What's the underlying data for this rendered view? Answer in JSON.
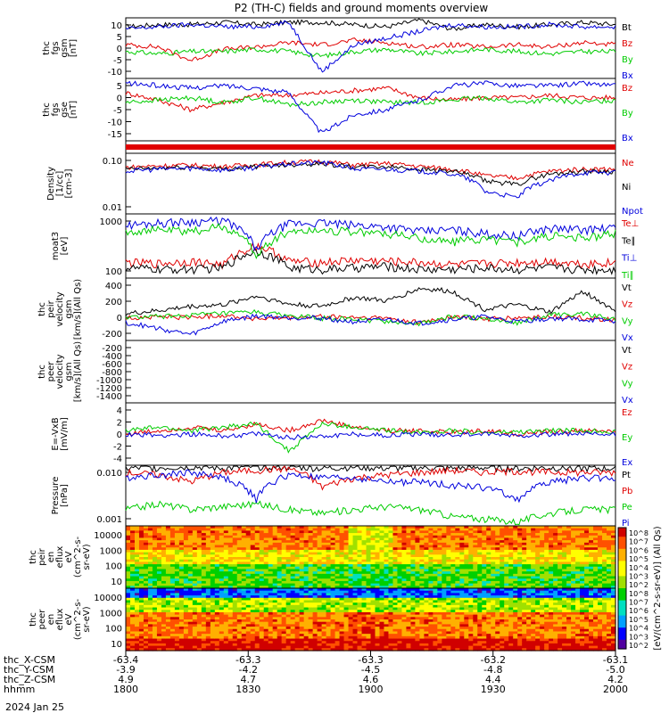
{
  "title": "P2 (TH-C) fields and ground moments overview",
  "date_label": "2024 Jan 25",
  "colors": {
    "black": "#000000",
    "red": "#e00000",
    "green": "#00cc00",
    "blue": "#0000dd"
  },
  "colorbar_label": "[eV/(cm^2-s-sr-eV)] (All Qs)",
  "colorbar_ticks": [
    "10^8",
    "10^7",
    "10^6",
    "10^5",
    "10^4",
    "10^3",
    "10^2",
    "10^8",
    "10^7",
    "10^6",
    "10^5",
    "10^4",
    "10^3",
    "10^2"
  ],
  "chart_data": {
    "type": "line",
    "x_axis": {
      "row_labels": [
        "thc_X-CSM",
        "thc_Y-CSM",
        "thc_Z-CSM",
        "hhmm"
      ],
      "columns": [
        [
          "-63.4",
          "-3.9",
          "4.9",
          "1800"
        ],
        [
          "-63.3",
          "-4.2",
          "4.7",
          "1830"
        ],
        [
          "-63.3",
          "-4.5",
          "4.6",
          "1900"
        ],
        [
          "-63.2",
          "-4.8",
          "4.4",
          "1930"
        ],
        [
          "-63.1",
          "-5.0",
          "4.2",
          "2000"
        ]
      ],
      "range": [
        "1800",
        "2000"
      ]
    },
    "panels": [
      {
        "id": "fgs_gsm",
        "ylabel": [
          "thc",
          "fgs",
          "gsm",
          "[nT]"
        ],
        "yticks": [
          "10",
          "5",
          "0",
          "-5",
          "-10"
        ],
        "ylim": [
          -13,
          14
        ],
        "series": [
          {
            "name": "Bt",
            "color": "#000000",
            "values": [
              10,
              11,
              11,
              12,
              11,
              12,
              12,
              11,
              10,
              13,
              9,
              11,
              10,
              11,
              12,
              11
            ]
          },
          {
            "name": "Bz",
            "color": "#e00000",
            "values": [
              2,
              1,
              -5,
              0,
              1,
              3,
              2,
              4,
              3,
              1,
              2,
              1,
              2,
              1,
              3,
              2
            ]
          },
          {
            "name": "By",
            "color": "#00cc00",
            "values": [
              -1,
              -2,
              -1,
              -1,
              0,
              -1,
              -3,
              -1,
              0,
              -2,
              -1,
              0,
              -1,
              -2,
              -1,
              -1
            ]
          },
          {
            "name": "Bx",
            "color": "#0000dd",
            "values": [
              9,
              10,
              11,
              10,
              10,
              12,
              -10,
              2,
              5,
              8,
              11,
              10,
              10,
              11,
              10,
              10
            ]
          }
        ]
      },
      {
        "id": "fgs_gse",
        "ylabel": [
          "thc",
          "fgs",
          "gse",
          "[nT]"
        ],
        "yticks": [
          "5",
          "0",
          "-5",
          "-10",
          "-15"
        ],
        "ylim": [
          -19,
          7
        ],
        "series": [
          {
            "name": "Bz",
            "color": "#e00000",
            "values": [
              1,
              -2,
              -6,
              -3,
              0,
              0,
              1,
              2,
              3,
              -1,
              -2,
              -1,
              -1,
              0,
              -1,
              -1
            ]
          },
          {
            "name": "By",
            "color": "#00cc00",
            "values": [
              -3,
              -2,
              -1,
              -3,
              -1,
              -4,
              -3,
              -2,
              -3,
              -3,
              -2,
              -1,
              -3,
              -2,
              -3,
              -2
            ]
          },
          {
            "name": "Bx",
            "color": "#0000dd",
            "values": [
              5,
              4,
              3,
              4,
              3,
              1,
              -16,
              -8,
              -6,
              -2,
              4,
              5,
              4,
              4,
              5,
              4
            ]
          }
        ]
      },
      {
        "id": "flags",
        "type": "bar",
        "ylabel": [],
        "yticks": [],
        "ylim": [
          0,
          1
        ]
      },
      {
        "id": "density",
        "log": true,
        "ylabel": [
          "Density",
          "[1/cc]",
          "[cm-3]"
        ],
        "yticks": [
          "0.10",
          "0.01"
        ],
        "ylim": [
          0.001,
          0.5
        ],
        "series": [
          {
            "name": "Ne",
            "color": "#e00000",
            "values": [
              0.12,
              0.14,
              0.15,
              0.13,
              0.16,
              0.2,
              0.22,
              0.15,
              0.18,
              0.13,
              0.1,
              0.05,
              0.04,
              0.08,
              0.1,
              0.1
            ]
          },
          {
            "name": "Ni",
            "color": "#000000",
            "values": [
              0.1,
              0.11,
              0.12,
              0.1,
              0.13,
              0.16,
              0.18,
              0.12,
              0.13,
              0.1,
              0.08,
              0.03,
              0.02,
              0.06,
              0.08,
              0.08
            ]
          },
          {
            "name": "Npot",
            "color": "#0000dd",
            "values": [
              0.08,
              0.1,
              0.11,
              0.09,
              0.12,
              0.17,
              0.2,
              0.1,
              0.1,
              0.08,
              0.06,
              0.01,
              0.005,
              0.03,
              0.07,
              0.07
            ]
          }
        ]
      },
      {
        "id": "temperature",
        "log": true,
        "ylabel": [
          "moat3",
          "[eV]"
        ],
        "yticks": [
          "1000",
          "100"
        ],
        "ylim": [
          60,
          2500
        ],
        "series": [
          {
            "name": "Te⊥",
            "color": "#e00000",
            "values": [
              150,
              140,
              160,
              130,
              400,
              160,
              150,
              170,
              160,
              150,
              130,
              140,
              150,
              160,
              140,
              150
            ]
          },
          {
            "name": "Te∥",
            "color": "#000000",
            "values": [
              110,
              100,
              100,
              110,
              300,
              110,
              100,
              110,
              120,
              100,
              100,
              110,
              100,
              110,
              100,
              100
            ]
          },
          {
            "name": "Ti⊥",
            "color": "#0000dd",
            "values": [
              1300,
              1500,
              1600,
              1700,
              300,
              1400,
              1500,
              1300,
              1200,
              900,
              1000,
              800,
              700,
              1100,
              1000,
              1100
            ]
          },
          {
            "name": "Ti∥",
            "color": "#00cc00",
            "values": [
              900,
              1000,
              900,
              1200,
              200,
              900,
              1000,
              900,
              800,
              600,
              500,
              600,
              500,
              700,
              600,
              800
            ]
          }
        ]
      },
      {
        "id": "peir_velocity",
        "ylabel": [
          "thc",
          "peir",
          "velocity",
          "gsm",
          "[km/s](All Qs)"
        ],
        "yticks": [
          "400",
          "200",
          "0",
          "-200"
        ],
        "ylim": [
          -280,
          560
        ],
        "series": [
          {
            "name": "Vt",
            "color": "#000000",
            "values": [
              80,
              120,
              180,
              200,
              320,
              210,
              180,
              300,
              250,
              420,
              380,
              140,
              200,
              100,
              380,
              120
            ]
          },
          {
            "name": "Vz",
            "color": "#e00000",
            "values": [
              20,
              40,
              30,
              60,
              10,
              20,
              40,
              30,
              20,
              -40,
              40,
              10,
              20,
              40,
              20,
              0
            ]
          },
          {
            "name": "Vy",
            "color": "#00cc00",
            "values": [
              30,
              40,
              60,
              80,
              100,
              50,
              20,
              0,
              -20,
              -60,
              40,
              20,
              -40,
              60,
              80,
              0
            ]
          },
          {
            "name": "Vx",
            "color": "#0000dd",
            "values": [
              -40,
              -120,
              -200,
              -20,
              50,
              30,
              20,
              -30,
              0,
              -50,
              0,
              40,
              -30,
              20,
              0,
              -20
            ]
          }
        ]
      },
      {
        "id": "peer_velocity",
        "ylabel": [
          "thc",
          "peer",
          "velocity",
          "gsm",
          "[km/s](All Qs)"
        ],
        "yticks": [
          "-200",
          "-400",
          "-600",
          "-800",
          "-1000",
          "-1200",
          "-1400"
        ],
        "ylim": [
          -1480,
          -140
        ],
        "series": [
          {
            "name": "Vt",
            "color": "#000000",
            "values": []
          },
          {
            "name": "Vz",
            "color": "#e00000",
            "values": []
          },
          {
            "name": "Vy",
            "color": "#00cc00",
            "values": []
          },
          {
            "name": "Vx",
            "color": "#0000dd",
            "values": []
          }
        ]
      },
      {
        "id": "efield",
        "ylabel": [
          "E=-VxB",
          "[mV/m]"
        ],
        "yticks": [
          "4",
          "2",
          "0",
          "-2",
          "-4"
        ],
        "ylim": [
          -4.6,
          4.6
        ],
        "series": [
          {
            "name": "Ez",
            "color": "#e00000",
            "values": [
              0,
              0.5,
              1,
              0.5,
              1.5,
              0.5,
              2,
              1,
              0.5,
              0.5,
              0.2,
              0.5,
              0,
              0.3,
              0.5,
              0.4
            ]
          },
          {
            "name": "Ey",
            "color": "#00cc00",
            "values": [
              0.5,
              1,
              0.5,
              1,
              1.5,
              -2.5,
              1.5,
              1,
              0.5,
              0.3,
              0.5,
              0.2,
              0.3,
              0.5,
              0.5,
              0.4
            ]
          },
          {
            "name": "Ex",
            "color": "#0000dd",
            "values": [
              0,
              -0.2,
              0,
              -0.3,
              0,
              -0.5,
              -0.3,
              0,
              -0.2,
              0,
              -0.1,
              0,
              -0.2,
              0,
              0,
              -0.1
            ]
          }
        ]
      },
      {
        "id": "pressure",
        "log": true,
        "ylabel": [
          "Pressure",
          "[nPa]"
        ],
        "yticks": [
          "0.010",
          "0.001"
        ],
        "ylim": [
          0.0006,
          0.05
        ],
        "series": [
          {
            "name": "Pt",
            "color": "#000000",
            "values": [
              0.04,
              0.042,
              0.045,
              0.04,
              0.045,
              0.045,
              0.04,
              0.044,
              0.04,
              0.042,
              0.04,
              0.042,
              0.04,
              0.042,
              0.04,
              0.04
            ]
          },
          {
            "name": "Pb",
            "color": "#e00000",
            "values": [
              0.03,
              0.025,
              0.015,
              0.03,
              0.035,
              0.04,
              0.01,
              0.02,
              0.025,
              0.03,
              0.035,
              0.03,
              0.033,
              0.03,
              0.03,
              0.03
            ]
          },
          {
            "name": "Pe",
            "color": "#00cc00",
            "values": [
              0.002,
              0.003,
              0.002,
              0.0025,
              0.003,
              0.002,
              0.0015,
              0.002,
              0.0025,
              0.002,
              0.0012,
              0.001,
              0.0008,
              0.0015,
              0.002,
              0.002
            ]
          },
          {
            "name": "Pi",
            "color": "#0000dd",
            "values": [
              0.02,
              0.025,
              0.03,
              0.02,
              0.004,
              0.025,
              0.02,
              0.02,
              0.015,
              0.015,
              0.012,
              0.01,
              0.004,
              0.015,
              0.02,
              0.02
            ]
          }
        ]
      },
      {
        "id": "peir_eflux",
        "type": "heatmap",
        "ylabel": [
          "thc",
          "peir",
          "en",
          "eflux",
          "eV",
          "(cm^2-s-",
          "sr-eV)"
        ],
        "yticks": [
          "10000",
          "1000",
          "100",
          "10"
        ]
      },
      {
        "id": "peer_eflux",
        "type": "heatmap",
        "ylabel": [
          "thc",
          "peer",
          "en",
          "eflux",
          "eV",
          "(cm^2-s-",
          "sr-eV)"
        ],
        "yticks": [
          "10000",
          "1000",
          "100",
          "10"
        ]
      }
    ]
  }
}
